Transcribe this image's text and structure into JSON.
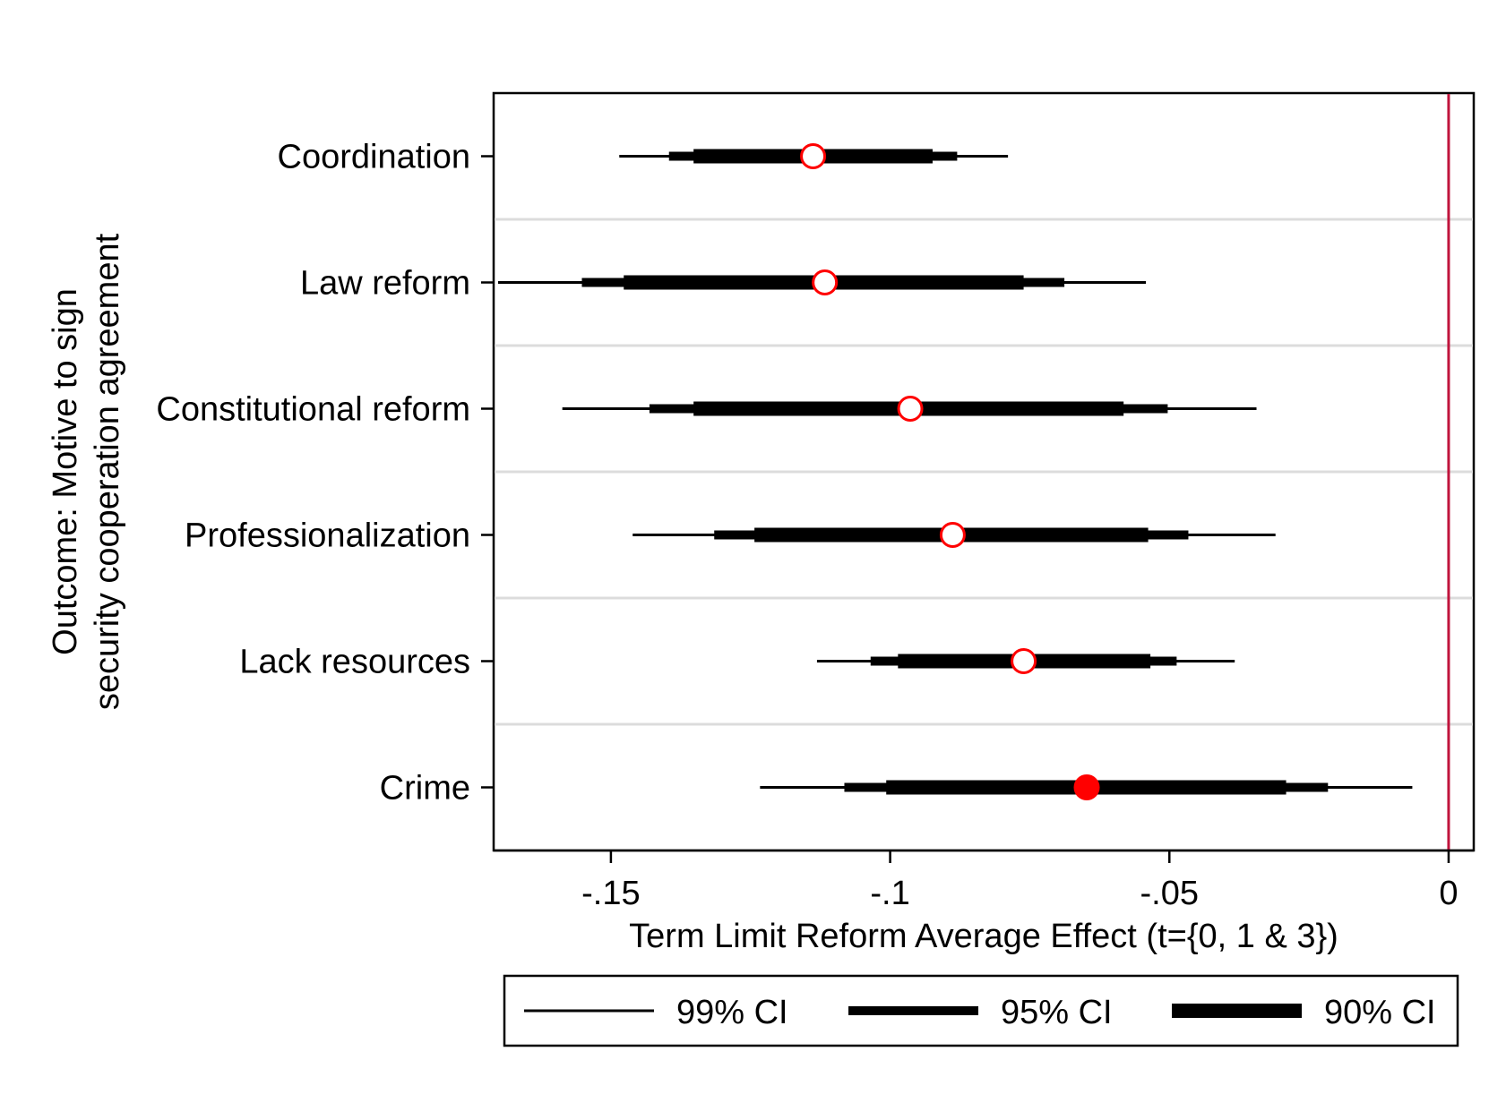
{
  "chart_data": {
    "type": "coefficient_plot",
    "title": "",
    "xlabel": "Term Limit Reform Average Effect (t={0, 1 & 3})",
    "ylabel_lines": [
      "Outcome: Motive to sign",
      "security cooperation agreement"
    ],
    "xlim": [
      -0.171,
      0.0045
    ],
    "x_ticks": [
      {
        "value": -0.15,
        "label": "-.15"
      },
      {
        "value": -0.1,
        "label": "-.1"
      },
      {
        "value": -0.05,
        "label": "-.05"
      },
      {
        "value": 0,
        "label": "0"
      }
    ],
    "reference_line": {
      "value": 0,
      "color": "#c0143c"
    },
    "grid": "horizontal separators between outcomes",
    "legend_position": "bottom",
    "legend": [
      {
        "label": "99% CI",
        "ci": "ci99"
      },
      {
        "label": "95% CI",
        "ci": "ci95"
      },
      {
        "label": "90% CI",
        "ci": "ci90"
      }
    ],
    "marker_colors": {
      "outline": "#ff0000",
      "fill_significant": "#ff0000",
      "fill_insignificant": "#ffffff"
    },
    "categories": [
      "Coordination",
      "Law reform",
      "Constitutional reform",
      "Professionalization",
      "Lack resources",
      "Crime"
    ],
    "estimates": [
      {
        "label": "Coordination",
        "estimate": -0.1138,
        "ci90": [
          -0.1352,
          -0.0924
        ],
        "ci95": [
          -0.1396,
          -0.088
        ],
        "ci99": [
          -0.1485,
          -0.0789
        ],
        "filled": false
      },
      {
        "label": "Law reform",
        "estimate": -0.1117,
        "ci90": [
          -0.1477,
          -0.0761
        ],
        "ci95": [
          -0.1552,
          -0.0688
        ],
        "ci99": [
          -0.1702,
          -0.0542
        ],
        "filled": false
      },
      {
        "label": "Constitutional reform",
        "estimate": -0.0964,
        "ci90": [
          -0.1352,
          -0.0582
        ],
        "ci95": [
          -0.1431,
          -0.0503
        ],
        "ci99": [
          -0.1587,
          -0.0344
        ],
        "filled": false
      },
      {
        "label": "Professionalization",
        "estimate": -0.0888,
        "ci90": [
          -0.1243,
          -0.0538
        ],
        "ci95": [
          -0.1315,
          -0.0466
        ],
        "ci99": [
          -0.1461,
          -0.031
        ],
        "filled": false
      },
      {
        "label": "Lack resources",
        "estimate": -0.0761,
        "ci90": [
          -0.0986,
          -0.0534
        ],
        "ci95": [
          -0.1035,
          -0.0487
        ],
        "ci99": [
          -0.1131,
          -0.0383
        ],
        "filled": false
      },
      {
        "label": "Crime",
        "estimate": -0.0648,
        "ci90": [
          -0.1007,
          -0.0291
        ],
        "ci95": [
          -0.1082,
          -0.0216
        ],
        "ci99": [
          -0.1233,
          -0.0065
        ],
        "filled": true
      }
    ]
  }
}
